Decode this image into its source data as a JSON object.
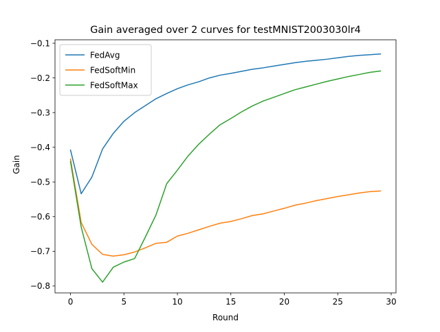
{
  "chart_data": {
    "type": "line",
    "title": "Gain averaged over 2 curves for testMNIST2003030lr4",
    "xlabel": "Round",
    "ylabel": "Gain",
    "xlim": [
      -1.45,
      30.45
    ],
    "ylim": [
      -0.82,
      -0.09
    ],
    "xticks": [
      0,
      5,
      10,
      15,
      20,
      25,
      30
    ],
    "xtick_labels": [
      "0",
      "5",
      "10",
      "15",
      "20",
      "25",
      "30"
    ],
    "yticks": [
      -0.8,
      -0.7,
      -0.6,
      -0.5,
      -0.4,
      -0.3,
      -0.2,
      -0.1
    ],
    "ytick_labels": [
      "−0.8",
      "−0.7",
      "−0.6",
      "−0.5",
      "−0.4",
      "−0.3",
      "−0.2",
      "−0.1"
    ],
    "grid": false,
    "legend_position": "top-left",
    "x": [
      0,
      1,
      2,
      3,
      4,
      5,
      6,
      7,
      8,
      9,
      10,
      11,
      12,
      13,
      14,
      15,
      16,
      17,
      18,
      19,
      20,
      21,
      22,
      23,
      24,
      25,
      26,
      27,
      28,
      29
    ],
    "series": [
      {
        "name": "FedAvg",
        "color": "#1f77b4",
        "values": [
          -0.408,
          -0.534,
          -0.486,
          -0.405,
          -0.36,
          -0.325,
          -0.3,
          -0.28,
          -0.26,
          -0.245,
          -0.231,
          -0.22,
          -0.211,
          -0.2,
          -0.192,
          -0.187,
          -0.181,
          -0.175,
          -0.171,
          -0.166,
          -0.161,
          -0.156,
          -0.152,
          -0.149,
          -0.146,
          -0.142,
          -0.138,
          -0.135,
          -0.133,
          -0.131
        ]
      },
      {
        "name": "FedSoftMin",
        "color": "#ff7f0e",
        "values": [
          -0.434,
          -0.617,
          -0.68,
          -0.709,
          -0.714,
          -0.71,
          -0.702,
          -0.69,
          -0.677,
          -0.674,
          -0.656,
          -0.648,
          -0.638,
          -0.628,
          -0.619,
          -0.614,
          -0.606,
          -0.597,
          -0.592,
          -0.584,
          -0.576,
          -0.567,
          -0.561,
          -0.554,
          -0.548,
          -0.542,
          -0.537,
          -0.532,
          -0.528,
          -0.526
        ]
      },
      {
        "name": "FedSoftMax",
        "color": "#2ca02c",
        "values": [
          -0.441,
          -0.63,
          -0.75,
          -0.789,
          -0.746,
          -0.731,
          -0.721,
          -0.659,
          -0.595,
          -0.505,
          -0.466,
          -0.425,
          -0.391,
          -0.362,
          -0.335,
          -0.317,
          -0.298,
          -0.281,
          -0.267,
          -0.256,
          -0.245,
          -0.234,
          -0.226,
          -0.218,
          -0.21,
          -0.203,
          -0.196,
          -0.19,
          -0.184,
          -0.18
        ]
      }
    ]
  }
}
